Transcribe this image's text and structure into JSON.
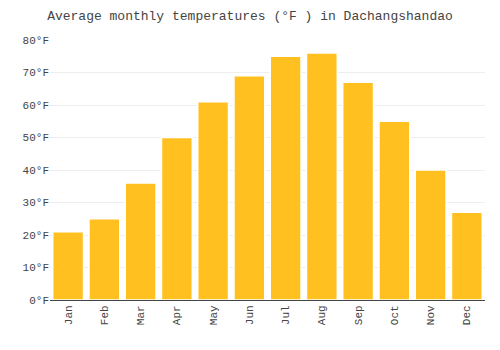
{
  "chart_data": {
    "type": "bar",
    "title": "Average monthly temperatures (°F ) in Dachangshandao",
    "categories": [
      "Jan",
      "Feb",
      "Mar",
      "Apr",
      "May",
      "Jun",
      "Jul",
      "Aug",
      "Sep",
      "Oct",
      "Nov",
      "Dec"
    ],
    "values": [
      21,
      25,
      36,
      50,
      61,
      69,
      75,
      76,
      67,
      55,
      40,
      27
    ],
    "color": "#FFC020",
    "ylim": [
      0,
      80
    ],
    "yticks": [
      {
        "value": 0,
        "label": "0°F"
      },
      {
        "value": 10,
        "label": "10°F"
      },
      {
        "value": 20,
        "label": "20°F"
      },
      {
        "value": 30,
        "label": "30°F"
      },
      {
        "value": 40,
        "label": "40°F"
      },
      {
        "value": 50,
        "label": "50°F"
      },
      {
        "value": 60,
        "label": "60°F"
      },
      {
        "value": 70,
        "label": "70°F"
      },
      {
        "value": 80,
        "label": "80°F"
      }
    ],
    "grid": true
  }
}
